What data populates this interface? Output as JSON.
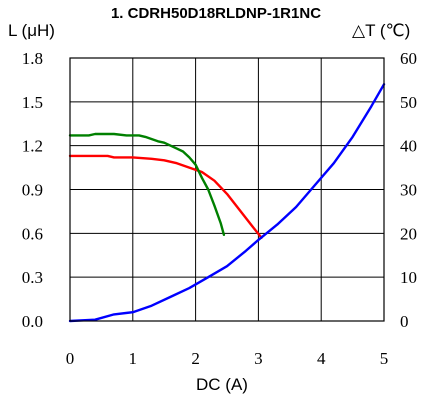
{
  "chart_data": {
    "type": "line",
    "title": "1. CDRH50D18RLDNP-1R1NC",
    "xlabel": "DC (A)",
    "ylabel_left": "L (μH)",
    "ylabel_right": "△T (℃)",
    "xlim": [
      0,
      5
    ],
    "ylim_left": [
      0,
      1.8
    ],
    "ylim_right": [
      0,
      60
    ],
    "x_ticks": [
      "0",
      "1",
      "2",
      "3",
      "4",
      "5"
    ],
    "y_left_ticks": [
      "0.0",
      "0.3",
      "0.6",
      "0.9",
      "1.2",
      "1.5",
      "1.8"
    ],
    "y_right_ticks": [
      "0",
      "10",
      "20",
      "30",
      "40",
      "50",
      "60"
    ],
    "grid": true,
    "series": [
      {
        "color": "#ff0000",
        "axis": "left",
        "points": [
          [
            0,
            1.13
          ],
          [
            0.6,
            1.13
          ],
          [
            0.7,
            1.12
          ],
          [
            1.0,
            1.12
          ],
          [
            1.3,
            1.11
          ],
          [
            1.5,
            1.1
          ],
          [
            1.7,
            1.08
          ],
          [
            1.9,
            1.05
          ],
          [
            2.1,
            1.02
          ],
          [
            2.3,
            0.96
          ],
          [
            2.5,
            0.87
          ],
          [
            2.7,
            0.76
          ],
          [
            2.9,
            0.65
          ],
          [
            3.05,
            0.57
          ]
        ]
      },
      {
        "color": "#008000",
        "axis": "left",
        "points": [
          [
            0,
            1.27
          ],
          [
            0.3,
            1.27
          ],
          [
            0.4,
            1.28
          ],
          [
            0.7,
            1.28
          ],
          [
            0.9,
            1.27
          ],
          [
            1.1,
            1.27
          ],
          [
            1.2,
            1.26
          ],
          [
            1.4,
            1.23
          ],
          [
            1.5,
            1.22
          ],
          [
            1.7,
            1.18
          ],
          [
            1.8,
            1.16
          ],
          [
            1.9,
            1.12
          ],
          [
            2.0,
            1.07
          ],
          [
            2.1,
            0.98
          ],
          [
            2.2,
            0.9
          ],
          [
            2.3,
            0.79
          ],
          [
            2.4,
            0.67
          ],
          [
            2.45,
            0.59
          ]
        ]
      },
      {
        "color": "#0000ff",
        "axis": "right",
        "points": [
          [
            0,
            0
          ],
          [
            0.4,
            0.3
          ],
          [
            0.7,
            1.5
          ],
          [
            1.0,
            2.0
          ],
          [
            1.3,
            3.5
          ],
          [
            1.6,
            5.5
          ],
          [
            1.9,
            7.5
          ],
          [
            2.2,
            10
          ],
          [
            2.5,
            12.5
          ],
          [
            2.8,
            16
          ],
          [
            3.0,
            18.5
          ],
          [
            3.3,
            22
          ],
          [
            3.6,
            26
          ],
          [
            3.9,
            31
          ],
          [
            4.2,
            36
          ],
          [
            4.5,
            42
          ],
          [
            4.8,
            49
          ],
          [
            5.0,
            54
          ]
        ]
      }
    ]
  }
}
